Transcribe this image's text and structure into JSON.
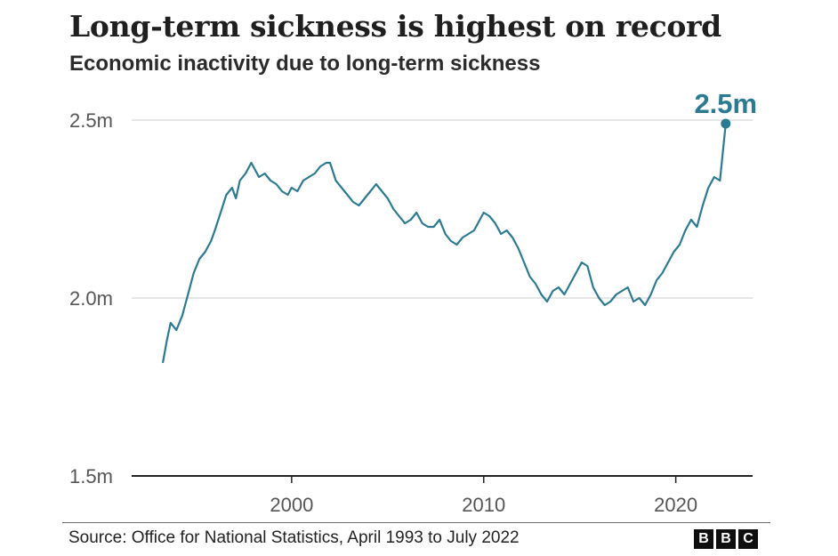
{
  "chart_data": {
    "type": "line",
    "title": "Long-term sickness is highest on record",
    "subtitle": "Economic inactivity due to long-term sickness",
    "source": "Source: Office for National Statistics, April 1993 to July 2022",
    "annotation": "2.5m",
    "ylim": [
      1.5,
      2.5
    ],
    "yticks": [
      {
        "value": 2.5,
        "label": "2.5m"
      },
      {
        "value": 2.0,
        "label": "2.0m"
      },
      {
        "value": 1.5,
        "label": "1.5m"
      }
    ],
    "xlim": [
      1991.67,
      2024.0
    ],
    "xticks": [
      {
        "value": 2000,
        "label": "2000"
      },
      {
        "value": 2010,
        "label": "2010"
      },
      {
        "value": 2020,
        "label": "2020"
      }
    ],
    "grid": true,
    "line_color": "#2b7a91",
    "series": [
      {
        "values_unit": "millions",
        "x": [
          1993.3,
          1993.5,
          1993.7,
          1994.0,
          1994.3,
          1994.6,
          1994.9,
          1995.2,
          1995.5,
          1995.8,
          1996.0,
          1996.3,
          1996.6,
          1996.9,
          1997.1,
          1997.3,
          1997.6,
          1997.9,
          1998.1,
          1998.3,
          1998.6,
          1998.9,
          1999.2,
          1999.5,
          1999.8,
          2000.0,
          2000.3,
          2000.6,
          2000.9,
          2001.2,
          2001.5,
          2001.8,
          2002.0,
          2002.3,
          2002.6,
          2002.9,
          2003.2,
          2003.5,
          2003.8,
          2004.1,
          2004.4,
          2004.7,
          2005.0,
          2005.3,
          2005.6,
          2005.9,
          2006.2,
          2006.5,
          2006.8,
          2007.1,
          2007.4,
          2007.7,
          2008.0,
          2008.3,
          2008.6,
          2008.9,
          2009.2,
          2009.5,
          2009.8,
          2010.0,
          2010.3,
          2010.6,
          2010.9,
          2011.2,
          2011.5,
          2011.8,
          2012.1,
          2012.4,
          2012.7,
          2013.0,
          2013.3,
          2013.6,
          2013.9,
          2014.2,
          2014.5,
          2014.8,
          2015.1,
          2015.4,
          2015.7,
          2016.0,
          2016.3,
          2016.6,
          2016.9,
          2017.2,
          2017.5,
          2017.8,
          2018.1,
          2018.4,
          2018.7,
          2019.0,
          2019.3,
          2019.6,
          2019.9,
          2020.2,
          2020.5,
          2020.8,
          2021.1,
          2021.4,
          2021.7,
          2022.0,
          2022.3,
          2022.6
        ],
        "values": [
          1.82,
          1.88,
          1.93,
          1.91,
          1.95,
          2.01,
          2.07,
          2.11,
          2.13,
          2.16,
          2.19,
          2.24,
          2.29,
          2.31,
          2.28,
          2.33,
          2.35,
          2.38,
          2.36,
          2.34,
          2.35,
          2.33,
          2.32,
          2.3,
          2.29,
          2.31,
          2.3,
          2.33,
          2.34,
          2.35,
          2.37,
          2.38,
          2.38,
          2.33,
          2.31,
          2.29,
          2.27,
          2.26,
          2.28,
          2.3,
          2.32,
          2.3,
          2.28,
          2.25,
          2.23,
          2.21,
          2.22,
          2.24,
          2.21,
          2.2,
          2.2,
          2.22,
          2.18,
          2.16,
          2.15,
          2.17,
          2.18,
          2.19,
          2.22,
          2.24,
          2.23,
          2.21,
          2.18,
          2.19,
          2.17,
          2.14,
          2.1,
          2.06,
          2.04,
          2.01,
          1.99,
          2.02,
          2.03,
          2.01,
          2.04,
          2.07,
          2.1,
          2.09,
          2.03,
          2.0,
          1.98,
          1.99,
          2.01,
          2.02,
          2.03,
          1.99,
          2.0,
          1.98,
          2.01,
          2.05,
          2.07,
          2.1,
          2.13,
          2.15,
          2.19,
          2.22,
          2.2,
          2.26,
          2.31,
          2.34,
          2.33,
          2.49
        ]
      }
    ]
  }
}
